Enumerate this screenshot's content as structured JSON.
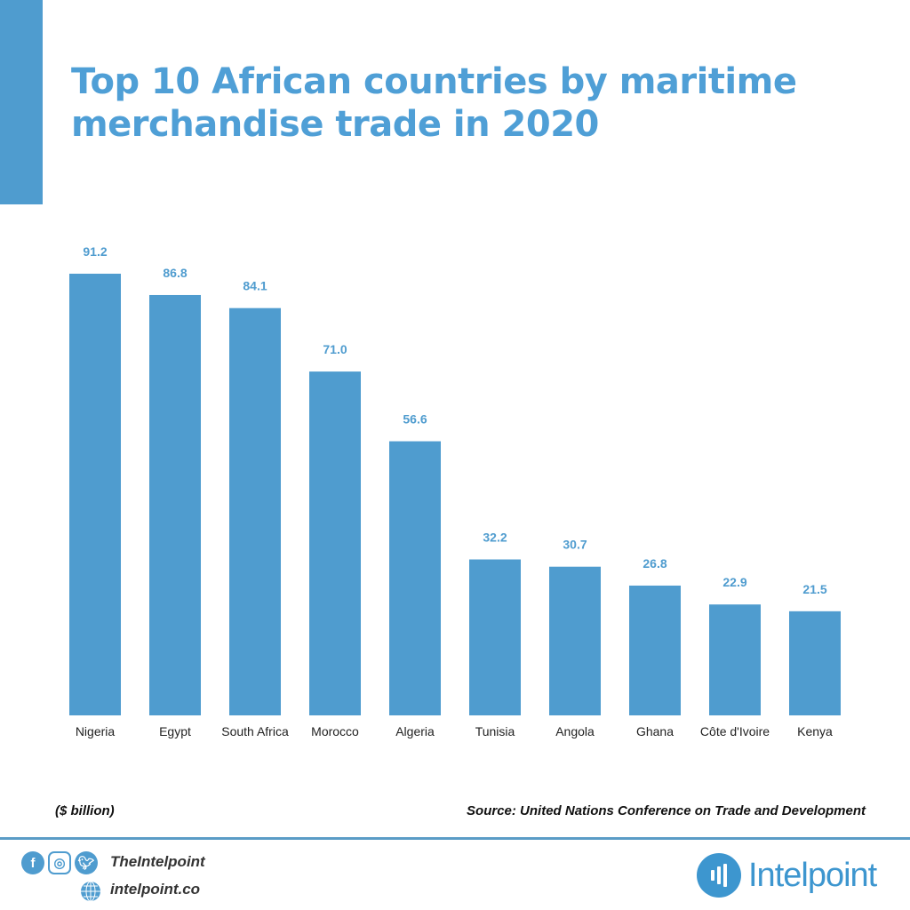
{
  "title": "Top 10 African countries by maritime merchandise trade in 2020",
  "unit_note": "($ billion)",
  "source": "Source: United Nations Conference on Trade and Development",
  "footer": {
    "social_icons": [
      "facebook-icon",
      "instagram-icon",
      "twitter-icon"
    ],
    "handle": "TheIntelpoint",
    "website": "intelpoint.co",
    "brand": "Intelpoint"
  },
  "colors": {
    "bar": "#4f9ccf",
    "title": "#4f9fd6",
    "label": "#4f9ccf"
  },
  "chart_data": {
    "type": "bar",
    "title": "Top 10 African countries by maritime merchandise trade in 2020",
    "categories": [
      "Nigeria",
      "Egypt",
      "South Africa",
      "Morocco",
      "Algeria",
      "Tunisia",
      "Angola",
      "Ghana",
      "Côte d'Ivoire",
      "Kenya"
    ],
    "values": [
      91.2,
      86.8,
      84.1,
      71.0,
      56.6,
      32.2,
      30.7,
      26.8,
      22.9,
      21.5
    ],
    "value_labels": [
      "91.2",
      "86.8",
      "84.1",
      "71.0",
      "56.6",
      "32.2",
      "30.7",
      "26.8",
      "22.9",
      "21.5"
    ],
    "ylabel": "($ billion)",
    "ylim": [
      0,
      91.2
    ],
    "grid": false,
    "legend": "none"
  }
}
